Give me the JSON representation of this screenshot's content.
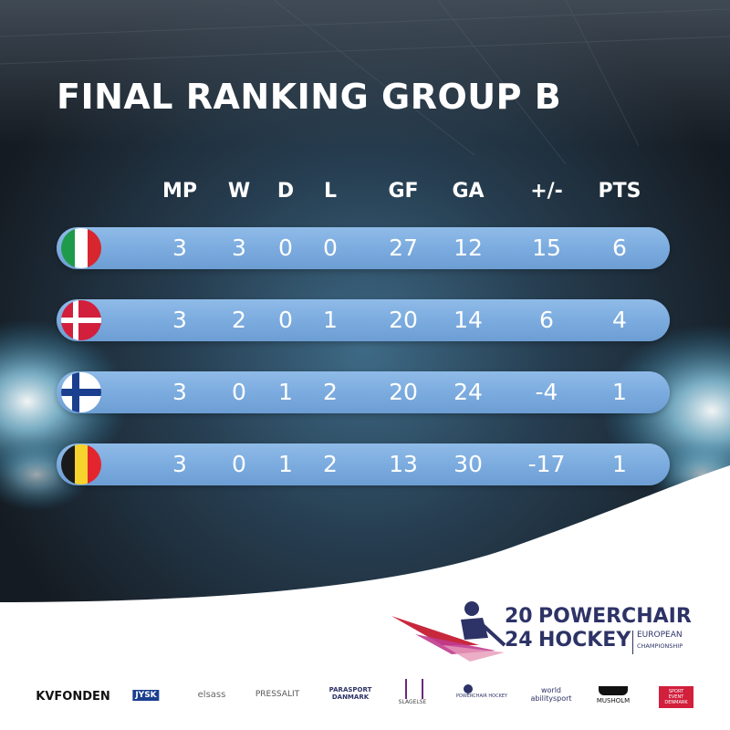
{
  "title": "FINAL RANKING GROUP B",
  "columns": [
    "MP",
    "W",
    "D",
    "L",
    "GF",
    "GA",
    "+/-",
    "PTS"
  ],
  "rows": [
    {
      "flag": "italy-flag",
      "values": [
        "3",
        "3",
        "0",
        "0",
        "27",
        "12",
        "15",
        "6"
      ]
    },
    {
      "flag": "denmark-flag",
      "values": [
        "3",
        "2",
        "0",
        "1",
        "20",
        "14",
        "6",
        "4"
      ]
    },
    {
      "flag": "finland-flag",
      "values": [
        "3",
        "0",
        "1",
        "2",
        "20",
        "24",
        "-4",
        "1"
      ]
    },
    {
      "flag": "belgium-flag",
      "values": [
        "3",
        "0",
        "1",
        "2",
        "13",
        "30",
        "-17",
        "1"
      ]
    }
  ],
  "event_logo": {
    "year_top": "20",
    "year_bottom": "24",
    "line1": "POWERCHAIR",
    "line2": "HOCKEY",
    "sub1": "EUROPEAN",
    "sub2": "CHAMPIONSHIP"
  },
  "sponsors": [
    "KVFONDEN",
    "JYSK",
    "elsass",
    "PRESSALIT",
    "PARASPORT DANMARK",
    "SLAGELSE",
    "POWERCHAIR HOCKEY",
    "world abilitysport",
    "MUSHOLM",
    "SPORT EVENT DENMARK"
  ],
  "colors": {
    "row_fill": "#7aaade",
    "dark_bg": "#1f2a36",
    "logo_navy": "#2d3366",
    "logo_red": "#c8283c",
    "logo_pink": "#c03b8e"
  }
}
